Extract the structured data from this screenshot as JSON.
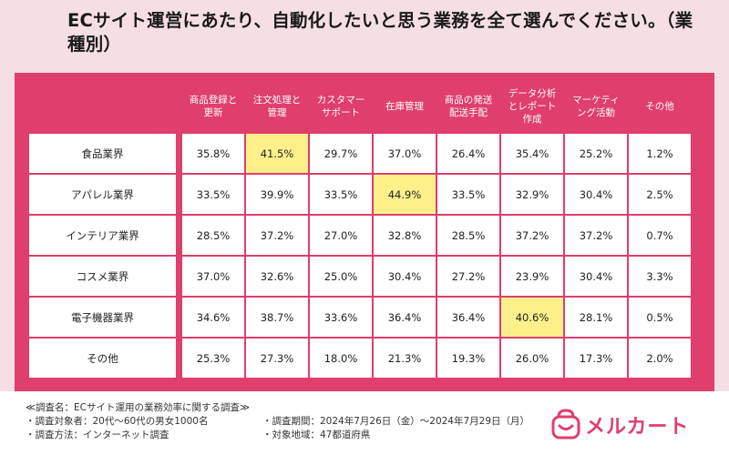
{
  "title": "ECサイト運営にあたり、自動化したいと思う業務を全て選んでください。（業種別）",
  "chart_data": {
    "type": "table",
    "columns": [
      "商品登録と更新",
      "注文処理と管理",
      "カスタマーサポート",
      "在庫管理",
      "商品の発送配送手配",
      "データ分析とレポート作成",
      "マーケティング活動",
      "その他"
    ],
    "column_lines": [
      [
        "商品登録と",
        "更新"
      ],
      [
        "注文処理と",
        "管理"
      ],
      [
        "カスタマー",
        "サポート"
      ],
      [
        "在庫管理"
      ],
      [
        "商品の発送",
        "配送手配"
      ],
      [
        "データ分析",
        "とレポート",
        "作成"
      ],
      [
        "マーケティ",
        "ング活動"
      ],
      [
        "その他"
      ]
    ],
    "rows": [
      {
        "label": "食品業界",
        "values": [
          "35.8%",
          "41.5%",
          "29.7%",
          "37.0%",
          "26.4%",
          "35.4%",
          "25.2%",
          "1.2%"
        ],
        "highlight": 1
      },
      {
        "label": "アパレル業界",
        "values": [
          "33.5%",
          "39.9%",
          "33.5%",
          "44.9%",
          "33.5%",
          "32.9%",
          "30.4%",
          "2.5%"
        ],
        "highlight": 3
      },
      {
        "label": "インテリア業界",
        "values": [
          "28.5%",
          "37.2%",
          "27.0%",
          "32.8%",
          "28.5%",
          "37.2%",
          "37.2%",
          "0.7%"
        ],
        "highlight": -1
      },
      {
        "label": "コスメ業界",
        "values": [
          "37.0%",
          "32.6%",
          "25.0%",
          "30.4%",
          "27.2%",
          "23.9%",
          "30.4%",
          "3.3%"
        ],
        "highlight": -1
      },
      {
        "label": "電子機器業界",
        "values": [
          "34.6%",
          "38.7%",
          "33.6%",
          "36.4%",
          "36.4%",
          "40.6%",
          "28.1%",
          "0.5%"
        ],
        "highlight": 5
      },
      {
        "label": "その他",
        "values": [
          "25.3%",
          "27.3%",
          "18.0%",
          "21.3%",
          "19.3%",
          "26.0%",
          "17.3%",
          "2.0%"
        ],
        "highlight": -1
      }
    ],
    "colors": {
      "header": "#e03e6c",
      "highlight": "#fdf08b",
      "background": "#f6dfe4"
    }
  },
  "footer": {
    "survey_name": "≪調査名：ECサイト運用の業務効率に関する調査≫",
    "target": "・調査対象者：20代〜60代の男女1000名",
    "period": "・調査期間：2024年7月26日（金）〜2024年7月29日（月）",
    "method": "・調査方法：インターネット調査",
    "region": "・対象地域：47都道府県"
  },
  "logo": {
    "text": "メルカート",
    "icon": "bag-logo-icon"
  }
}
